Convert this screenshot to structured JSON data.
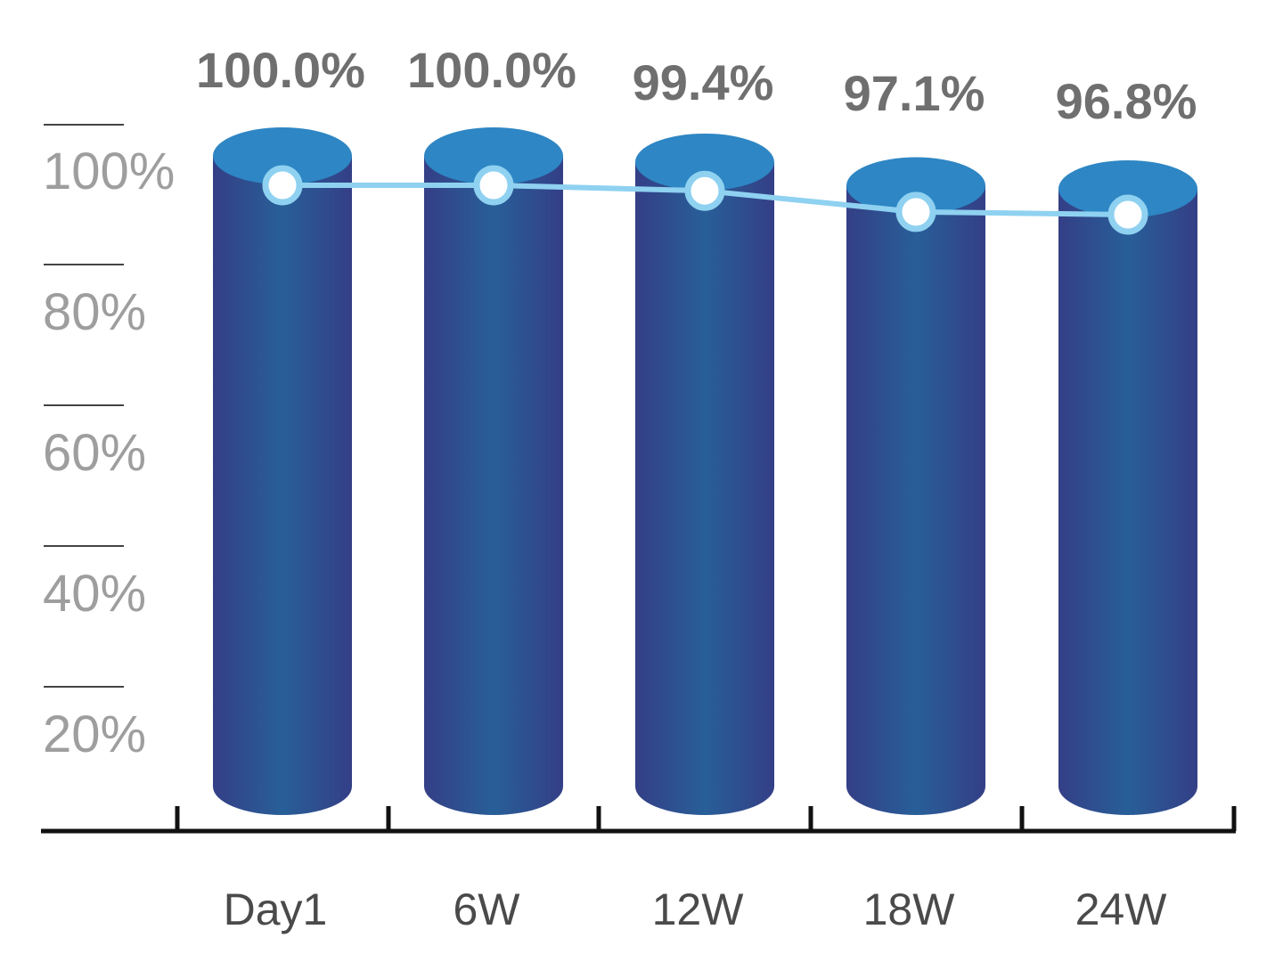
{
  "chart_data": {
    "type": "bar",
    "categories": [
      "Day1",
      "6W",
      "12W",
      "18W",
      "24W"
    ],
    "values": [
      100.0,
      100.0,
      99.4,
      97.1,
      96.8
    ],
    "data_labels": [
      "100.0%",
      "100.0%",
      "99.4%",
      "97.1%",
      "96.8%"
    ],
    "overlay": "line with circular markers",
    "ylabel": "",
    "xlabel": "",
    "yticks": [
      "20%",
      "40%",
      "60%",
      "80%",
      "100%"
    ],
    "ylim": [
      0,
      100
    ],
    "grid": false,
    "legend": "none",
    "colors": {
      "bar_body_edge": "#343f86",
      "bar_body_center": "#285f98",
      "bar_top": "#2e86c4",
      "line": "#8fd1f0",
      "marker_fill": "#ffffff",
      "axis": "#111111",
      "tick_label": "#9e9e9e",
      "category_label": "#4a4a4a",
      "data_label": "#6f6f6f"
    }
  }
}
